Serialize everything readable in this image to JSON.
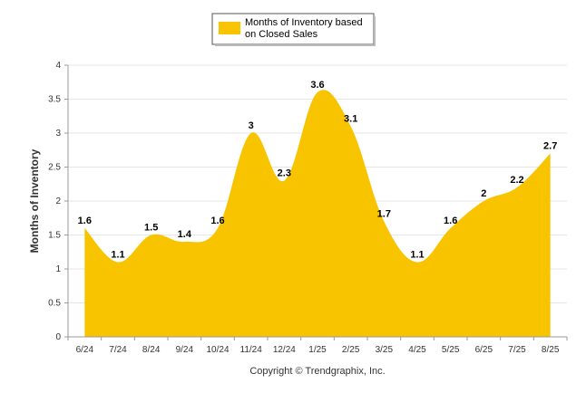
{
  "chart_data": {
    "type": "area",
    "categories": [
      "6/24",
      "7/24",
      "8/24",
      "9/24",
      "10/24",
      "11/24",
      "12/24",
      "1/25",
      "2/25",
      "3/25",
      "4/25",
      "5/25",
      "6/25",
      "7/25",
      "8/25"
    ],
    "series": [
      {
        "name": "Months of Inventory based on Closed Sales",
        "values": [
          1.6,
          1.1,
          1.5,
          1.4,
          1.6,
          3,
          2.3,
          3.6,
          3.1,
          1.7,
          1.1,
          1.6,
          2,
          2.2,
          2.7
        ]
      }
    ],
    "legend_lines": [
      "Months of Inventory based",
      "on Closed Sales"
    ],
    "ylabel": "Months of Inventory",
    "ylim": [
      0,
      4
    ],
    "yticks": [
      "0",
      "0.5",
      "1",
      "1.5",
      "2",
      "2.5",
      "3",
      "3.5",
      "4"
    ],
    "grid": true,
    "legend_position": "top-center",
    "credit": "Copyright © Trendgraphix, Inc.",
    "colors": {
      "fill": "#F8C400",
      "grid": "#E6E6E6",
      "axis": "#999999"
    }
  }
}
